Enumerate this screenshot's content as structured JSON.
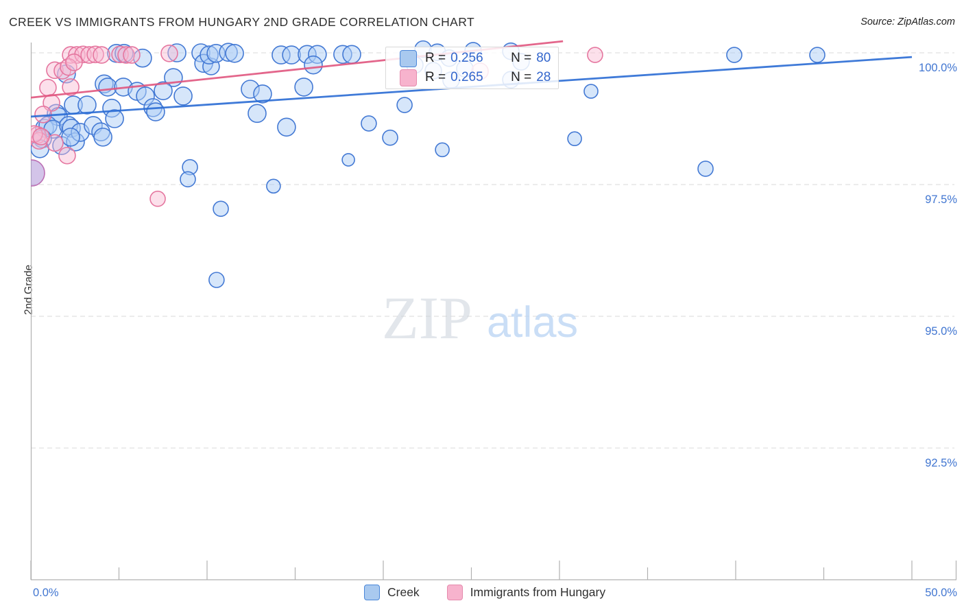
{
  "header": {
    "title": "CREEK VS IMMIGRANTS FROM HUNGARY 2ND GRADE CORRELATION CHART",
    "source": "Source: ZipAtlas.com"
  },
  "axes": {
    "y_label": "2nd Grade",
    "y_ticks": [
      "100.0%",
      "97.5%",
      "95.0%",
      "92.5%"
    ],
    "y_tick_values": [
      100.0,
      97.5,
      95.0,
      92.5
    ],
    "x_min_label": "0.0%",
    "x_max_label": "50.0%"
  },
  "watermark": {
    "zip": "ZIP",
    "atlas": "atlas"
  },
  "legend_box": {
    "rows": [
      {
        "series": "Creek",
        "r_label": "R =",
        "r_value": "0.256",
        "n_label": "N =",
        "n_value": "80"
      },
      {
        "series": "Immigrants from Hungary",
        "r_label": "R =",
        "r_value": "0.265",
        "n_label": "N =",
        "n_value": "28"
      }
    ]
  },
  "bottom_legend": {
    "creek_label": "Creek",
    "hungary_label": "Immigrants from Hungary"
  },
  "colors": {
    "axis_label_blue": "#4176d1",
    "grid": "#d9d9d9",
    "axis_line": "#b0b0b0",
    "creek_stroke": "#4379d4",
    "creek_fill": "rgba(173,205,245,0.5)",
    "creek_trend": "#2a6cd4",
    "hungary_stroke": "#e5769f",
    "hungary_fill": "rgba(248,187,210,0.45)",
    "hungary_trend": "#e0557e",
    "big_point_fill": "rgba(167,138,212,0.5)",
    "big_point_stroke": "#bb6fb4"
  },
  "chart_data": {
    "type": "scatter",
    "title": "CREEK VS IMMIGRANTS FROM HUNGARY 2ND GRADE CORRELATION CHART",
    "x_unit": "%",
    "y_unit": "%",
    "xlim": [
      0,
      50
    ],
    "ylim": [
      87.5,
      100.35
    ],
    "grid": "horizontal-dashed",
    "series": [
      {
        "name": "Creek",
        "R": 0.256,
        "N": 80,
        "trend": {
          "x": [
            0,
            50
          ],
          "y": [
            98.79,
            99.92
          ]
        },
        "points": [
          [
            4.86,
            99.99,
            13
          ],
          [
            5.29,
            99.99,
            13
          ],
          [
            6.34,
            99.9,
            13
          ],
          [
            8.29,
            100.0,
            13
          ],
          [
            9.65,
            100.0,
            13
          ],
          [
            9.81,
            99.8,
            13
          ],
          [
            10.23,
            99.74,
            12
          ],
          [
            10.12,
            99.96,
            13
          ],
          [
            10.51,
            99.99,
            13
          ],
          [
            11.21,
            100.01,
            13
          ],
          [
            11.56,
            99.99,
            13
          ],
          [
            14.2,
            99.96,
            13
          ],
          [
            14.79,
            99.96,
            13
          ],
          [
            15.68,
            99.97,
            13
          ],
          [
            16.26,
            99.97,
            13
          ],
          [
            16.03,
            99.77,
            13
          ],
          [
            17.7,
            99.97,
            13
          ],
          [
            18.21,
            99.97,
            13
          ],
          [
            22.26,
            100.07,
            12
          ],
          [
            23.07,
            100.01,
            12
          ],
          [
            25.1,
            100.04,
            12
          ],
          [
            27.24,
            100.03,
            12
          ],
          [
            39.92,
            99.96,
            11
          ],
          [
            44.63,
            99.96,
            11
          ],
          [
            2.02,
            99.6,
            13
          ],
          [
            4.16,
            99.41,
            13
          ],
          [
            4.36,
            99.35,
            13
          ],
          [
            5.25,
            99.35,
            13
          ],
          [
            6.03,
            99.27,
            13
          ],
          [
            6.5,
            99.18,
            13
          ],
          [
            8.09,
            99.53,
            13
          ],
          [
            7.51,
            99.28,
            13
          ],
          [
            8.64,
            99.18,
            13
          ],
          [
            12.45,
            99.31,
            13
          ],
          [
            13.15,
            99.22,
            13
          ],
          [
            15.49,
            99.35,
            13
          ],
          [
            21.21,
            99.01,
            11
          ],
          [
            31.79,
            99.27,
            10
          ],
          [
            23.85,
            99.48,
            12
          ],
          [
            24.63,
            99.7,
            12
          ],
          [
            27.24,
            99.49,
            12
          ],
          [
            22.84,
            99.66,
            12
          ],
          [
            2.41,
            99.01,
            13
          ],
          [
            3.19,
            99.01,
            13
          ],
          [
            4.59,
            98.95,
            13
          ],
          [
            4.75,
            98.75,
            13
          ],
          [
            1.44,
            98.85,
            13
          ],
          [
            1.56,
            98.79,
            13
          ],
          [
            6.93,
            98.96,
            13
          ],
          [
            7.08,
            98.88,
            13
          ],
          [
            12.84,
            98.85,
            13
          ],
          [
            14.51,
            98.59,
            13
          ],
          [
            0.78,
            98.57,
            13
          ],
          [
            0.97,
            98.62,
            13
          ],
          [
            1.25,
            98.55,
            13
          ],
          [
            1.75,
            98.24,
            13
          ],
          [
            2.14,
            98.62,
            13
          ],
          [
            2.3,
            98.57,
            13
          ],
          [
            2.53,
            98.31,
            13
          ],
          [
            2.8,
            98.49,
            13
          ],
          [
            3.54,
            98.62,
            13
          ],
          [
            3.97,
            98.5,
            13
          ],
          [
            0.66,
            98.37,
            13
          ],
          [
            0.51,
            98.18,
            13
          ],
          [
            4.09,
            98.4,
            13
          ],
          [
            20.39,
            98.39,
            11
          ],
          [
            19.18,
            98.66,
            11
          ],
          [
            23.35,
            98.16,
            10
          ],
          [
            30.86,
            98.37,
            10
          ],
          [
            18.02,
            97.97,
            9
          ],
          [
            9.03,
            97.83,
            11
          ],
          [
            8.91,
            97.6,
            11
          ],
          [
            13.77,
            97.47,
            10
          ],
          [
            38.29,
            97.8,
            11
          ],
          [
            10.78,
            97.04,
            11
          ],
          [
            10.54,
            95.69,
            11
          ],
          [
            2.26,
            98.4,
            13
          ],
          [
            27.82,
            99.83,
            12
          ],
          [
            21.79,
            99.77,
            12
          ],
          [
            23.74,
            99.9,
            12
          ]
        ]
      },
      {
        "name": "Immigrants from Hungary",
        "R": 0.265,
        "N": 28,
        "trend": {
          "x": [
            0,
            30.2
          ],
          "y": [
            99.15,
            100.22
          ]
        },
        "points": [
          [
            2.26,
            99.96,
            12
          ],
          [
            2.61,
            99.96,
            12
          ],
          [
            2.96,
            99.97,
            12
          ],
          [
            3.31,
            99.96,
            12
          ],
          [
            3.66,
            99.97,
            12
          ],
          [
            4.01,
            99.96,
            12
          ],
          [
            5.06,
            99.97,
            12
          ],
          [
            5.41,
            99.96,
            12
          ],
          [
            5.72,
            99.96,
            12
          ],
          [
            7.86,
            99.99,
            12
          ],
          [
            1.36,
            99.67,
            12
          ],
          [
            1.79,
            99.66,
            12
          ],
          [
            2.14,
            99.73,
            12
          ],
          [
            2.45,
            99.82,
            12
          ],
          [
            0.97,
            99.34,
            12
          ],
          [
            2.26,
            99.35,
            12
          ],
          [
            1.17,
            99.05,
            12
          ],
          [
            0.7,
            98.83,
            12
          ],
          [
            0.39,
            98.44,
            12
          ],
          [
            0.47,
            98.33,
            12
          ],
          [
            1.36,
            98.29,
            12
          ],
          [
            2.06,
            98.05,
            12
          ],
          [
            7.2,
            97.23,
            11
          ],
          [
            32.02,
            99.96,
            11
          ],
          [
            25.49,
            99.65,
            12
          ],
          [
            0.19,
            98.46,
            12
          ],
          [
            0.58,
            98.41,
            12
          ],
          [
            0.04,
            97.72,
            19
          ]
        ]
      }
    ]
  }
}
